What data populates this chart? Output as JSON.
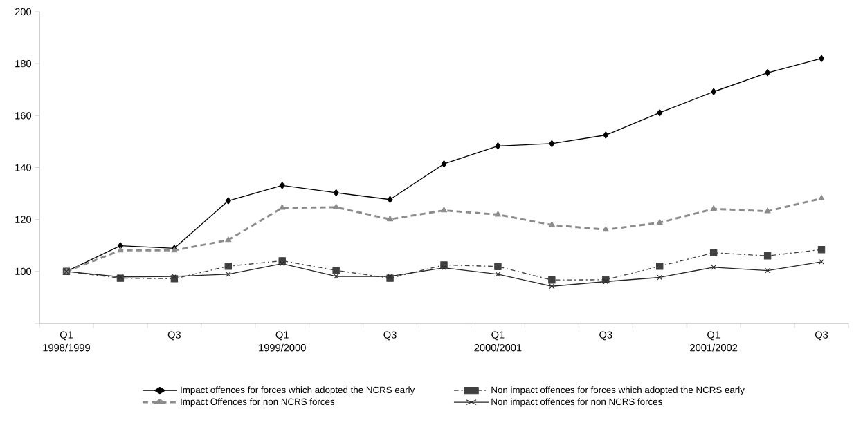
{
  "chart_data": {
    "type": "line",
    "categories": [
      "Q1 1998/1999",
      null,
      "Q3",
      null,
      "Q1 1999/2000",
      null,
      "Q3",
      null,
      "Q1 2000/2001",
      null,
      "Q3",
      null,
      "Q1 2001/2002",
      null,
      "Q3"
    ],
    "series": [
      {
        "name": "Impact offences for forces which adopted the NCRS early",
        "color": "#000000",
        "marker": "diamond",
        "line_style": "solid",
        "values": [
          100,
          109.9,
          108.9,
          127.2,
          133.1,
          130.3,
          127.7,
          141.4,
          148.3,
          149.2,
          152.5,
          161.1,
          169.2,
          176.5,
          182.0
        ]
      },
      {
        "name": "Non impact offences for forces which adopted the NCRS early",
        "color": "#404040",
        "marker": "square",
        "line_style": "dashdot",
        "values": [
          100,
          97.4,
          97.2,
          102.0,
          104.1,
          100.4,
          97.4,
          102.5,
          101.9,
          96.7,
          96.8,
          102.0,
          107.2,
          106.0,
          108.4
        ]
      },
      {
        "name": "Impact Offences for non NCRS forces",
        "color": "#8c8c8c",
        "marker": "triangle",
        "line_style": "dashed",
        "values": [
          100,
          108.1,
          108.1,
          112.1,
          124.5,
          124.7,
          120.1,
          123.5,
          121.9,
          117.9,
          116.1,
          118.8,
          124.1,
          123.2,
          128.1
        ]
      },
      {
        "name": "Non impact offences for non NCRS forces",
        "color": "#262626",
        "marker": "cross",
        "line_style": "solid",
        "values": [
          100,
          97.9,
          98.1,
          98.9,
          103.0,
          98.1,
          98.1,
          101.4,
          98.9,
          94.3,
          96.1,
          97.7,
          101.6,
          100.3,
          103.7
        ]
      }
    ],
    "ylim": [
      80,
      200
    ],
    "yticks": [
      {
        "value": 80,
        "label": null
      },
      100,
      120,
      140,
      160,
      180,
      200
    ],
    "grid": false,
    "legend": "bottom"
  }
}
